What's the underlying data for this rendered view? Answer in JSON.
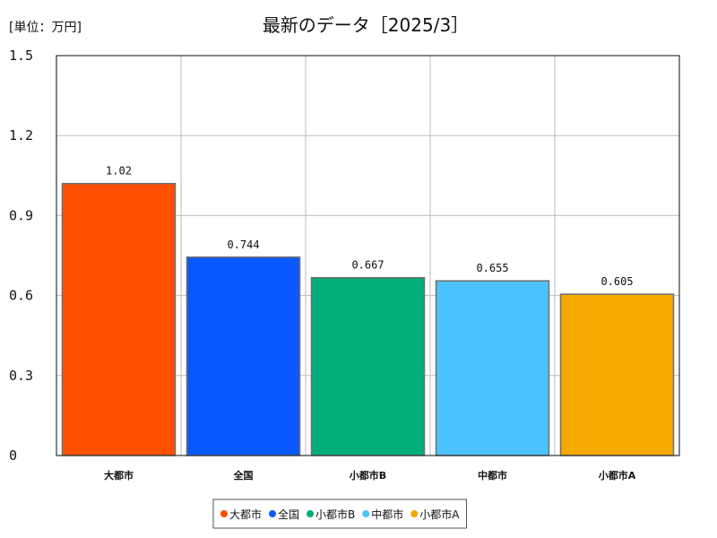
{
  "unit_label": "[単位：万円]",
  "chart_data": {
    "type": "bar",
    "title": "最新のデータ［2025/3］",
    "xlabel": "",
    "ylabel": "",
    "ylim": [
      0,
      1.5
    ],
    "yticks": [
      "0",
      "0.3",
      "0.6",
      "0.9",
      "1.2",
      "1.5"
    ],
    "grid": true,
    "legend_position": "bottom",
    "categories": [
      "大都市",
      "全国",
      "小都市B",
      "中都市",
      "小都市A"
    ],
    "values": [
      1.02,
      0.744,
      0.667,
      0.655,
      0.605
    ],
    "value_labels": [
      "1.02",
      "0.744",
      "0.667",
      "0.655",
      "0.605"
    ],
    "colors": [
      "#ff4f00",
      "#0a59ff",
      "#00ac78",
      "#4cc3ff",
      "#f5a800"
    ]
  }
}
